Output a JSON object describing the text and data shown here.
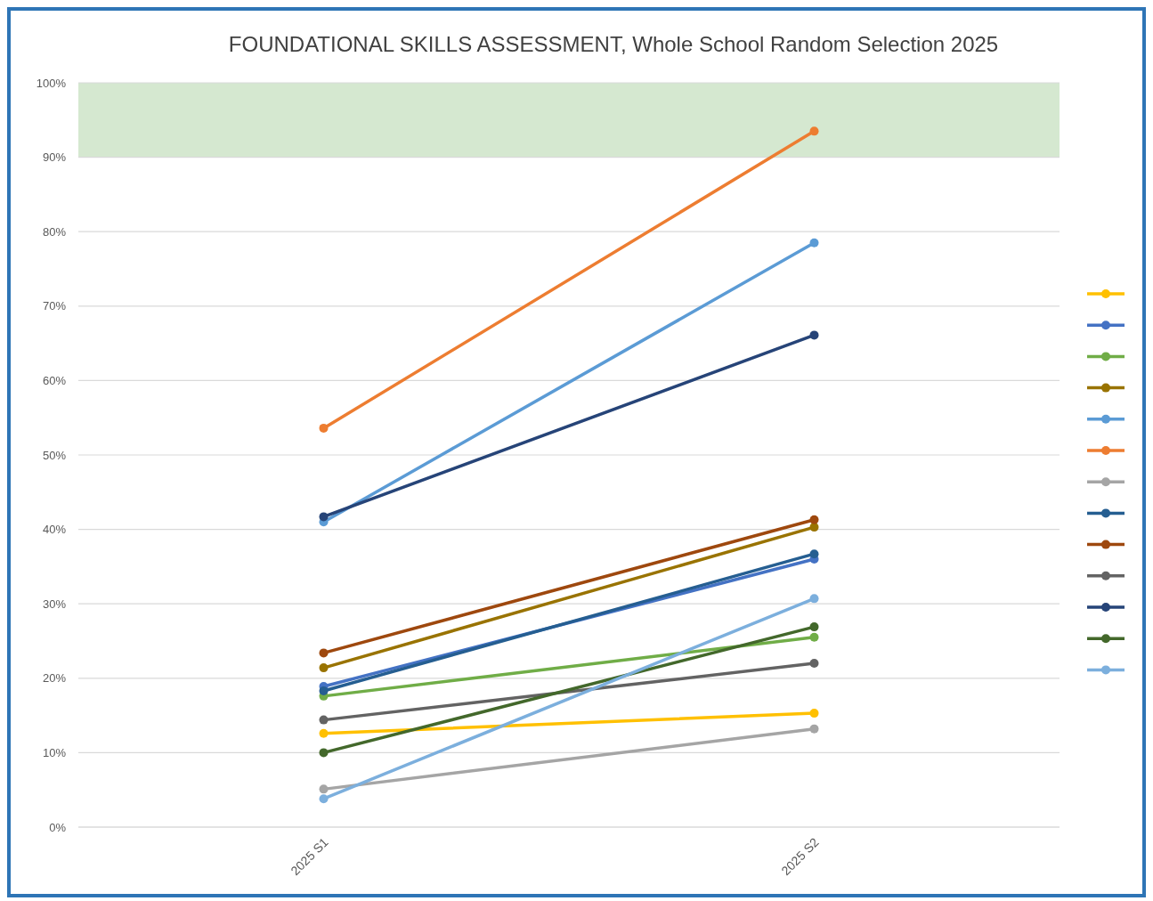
{
  "chart_data": {
    "type": "line",
    "title": "FOUNDATIONAL SKILLS ASSESSMENT, Whole School Random Selection 2025",
    "categories": [
      "2025 S1",
      "2025 S2"
    ],
    "series": [
      {
        "color": "#ffc000",
        "values": [
          12.6,
          15.3
        ]
      },
      {
        "color": "#4472c4",
        "values": [
          18.9,
          36.0
        ]
      },
      {
        "color": "#70ad47",
        "values": [
          17.6,
          25.5
        ]
      },
      {
        "color": "#997300",
        "values": [
          21.4,
          40.3
        ]
      },
      {
        "color": "#5b9bd5",
        "values": [
          41.0,
          78.5
        ]
      },
      {
        "color": "#ed7d31",
        "values": [
          53.6,
          93.5
        ]
      },
      {
        "color": "#a5a5a5",
        "values": [
          5.1,
          13.2
        ]
      },
      {
        "color": "#255e91",
        "values": [
          18.3,
          36.7
        ]
      },
      {
        "color": "#9e480e",
        "values": [
          23.4,
          41.3
        ]
      },
      {
        "color": "#636363",
        "values": [
          14.4,
          22.0
        ]
      },
      {
        "color": "#264478",
        "values": [
          41.7,
          66.1
        ]
      },
      {
        "color": "#43682b",
        "values": [
          10.0,
          26.9
        ]
      },
      {
        "color": "#7cafdd",
        "values": [
          3.8,
          30.7
        ]
      }
    ],
    "ylim": [
      0,
      100
    ],
    "yticks": [
      {
        "value": 0,
        "label": "0%"
      },
      {
        "value": 10,
        "label": "10%"
      },
      {
        "value": 20,
        "label": "20%"
      },
      {
        "value": 30,
        "label": "30%"
      },
      {
        "value": 40,
        "label": "40%"
      },
      {
        "value": 50,
        "label": "50%"
      },
      {
        "value": 60,
        "label": "60%"
      },
      {
        "value": 70,
        "label": "70%"
      },
      {
        "value": 80,
        "label": "80%"
      },
      {
        "value": 90,
        "label": "90%"
      },
      {
        "value": 100,
        "label": "100%"
      }
    ],
    "bands": [
      {
        "axis": "y",
        "from": 90,
        "to": 100,
        "color": "#d5e8d0"
      }
    ],
    "grid": "y",
    "marker": "circle",
    "line_style": "solid"
  }
}
